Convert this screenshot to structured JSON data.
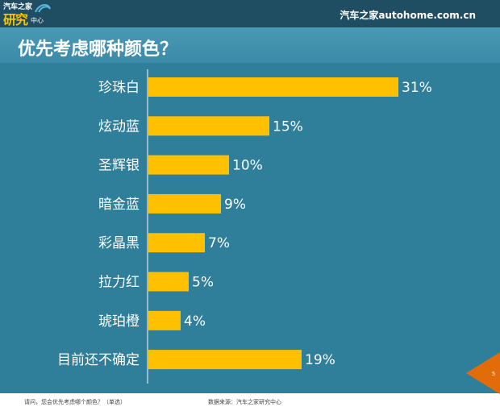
{
  "header": {
    "logo_small": "汽车之家",
    "logo_big": "研究",
    "logo_sub": "中心",
    "brand": "汽车之家autohome.com.cn"
  },
  "title": "优先考虑哪种颜色？",
  "footer": {
    "question": "请问，您会优先考虑哪个颜色？（单选）",
    "source": "数据来源：汽车之家研究中心"
  },
  "page_number": "5",
  "colors": {
    "bar": "#ffc000",
    "background": "#2f7e9a",
    "header": "#1f4e63",
    "accent": "#e36c0a"
  },
  "chart_data": {
    "type": "bar",
    "orientation": "horizontal",
    "categories": [
      "珍珠白",
      "炫动蓝",
      "圣辉银",
      "暗金蓝",
      "彩晶黑",
      "拉力红",
      "琥珀橙",
      "目前还不确定"
    ],
    "values": [
      31,
      15,
      10,
      9,
      7,
      5,
      4,
      19
    ],
    "value_labels": [
      "31%",
      "15%",
      "10%",
      "9%",
      "7%",
      "5%",
      "4%",
      "19%"
    ],
    "title": "优先考虑哪种颜色？",
    "xlabel": "",
    "ylabel": "",
    "xlim": [
      0,
      31
    ],
    "grid": false,
    "legend": "none"
  }
}
